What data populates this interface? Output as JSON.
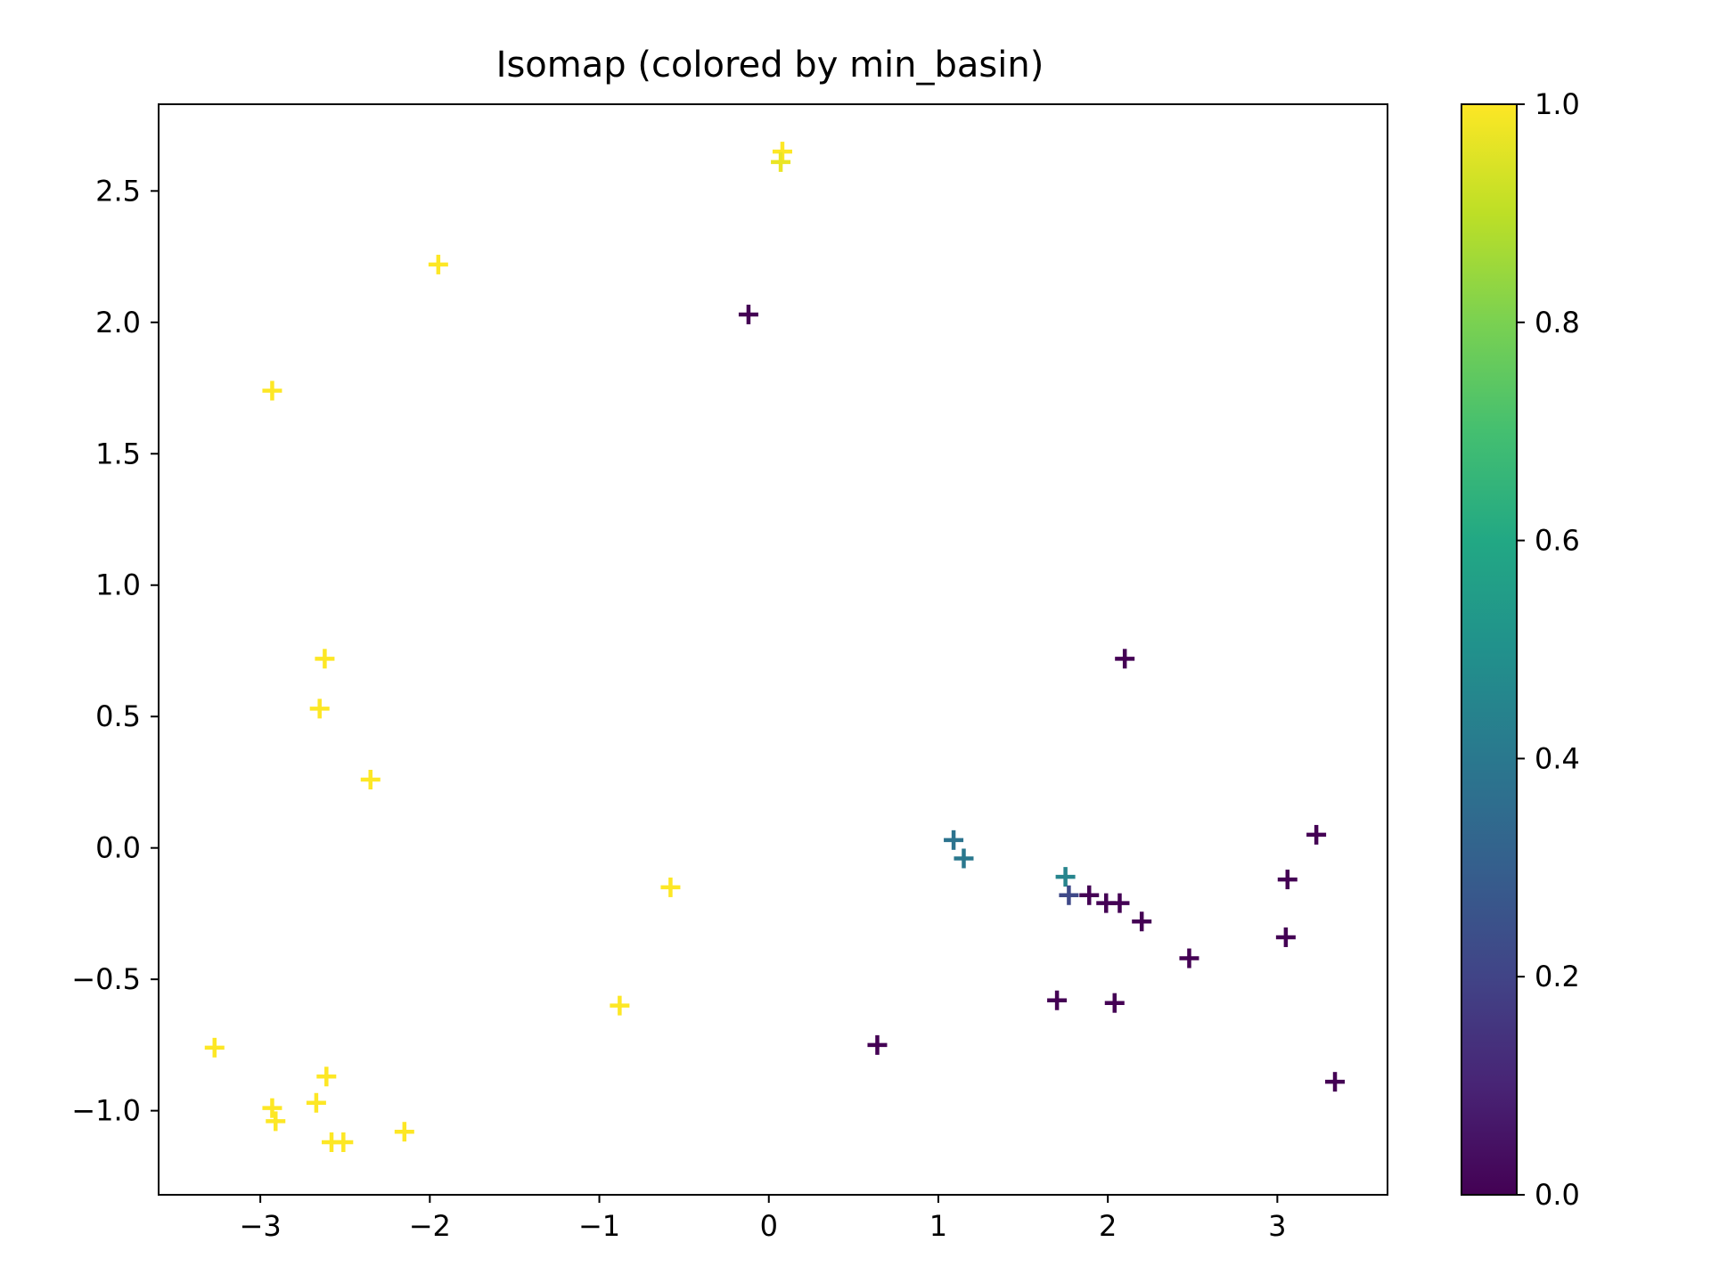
{
  "chart_data": {
    "type": "scatter",
    "title": "Isomap (colored by min_basin)",
    "xlabel": "",
    "ylabel": "",
    "xlim": [
      -3.6,
      3.65
    ],
    "ylim": [
      -1.32,
      2.83
    ],
    "xticks": [
      -3,
      -2,
      -1,
      0,
      1,
      2,
      3
    ],
    "xtick_labels": [
      "−3",
      "−2",
      "−1",
      "0",
      "1",
      "2",
      "3"
    ],
    "yticks": [
      -1.0,
      -0.5,
      0.0,
      0.5,
      1.0,
      1.5,
      2.0,
      2.5
    ],
    "ytick_labels": [
      "−1.0",
      "−0.5",
      "0.0",
      "0.5",
      "1.0",
      "1.5",
      "2.0",
      "2.5"
    ],
    "marker": "+",
    "grid": false,
    "colormap": "viridis",
    "colorbar": {
      "range": [
        0.0,
        1.0
      ],
      "ticks": [
        0.0,
        0.2,
        0.4,
        0.6,
        0.8,
        1.0
      ],
      "tick_labels": [
        "0.0",
        "0.2",
        "0.4",
        "0.6",
        "0.8",
        "1.0"
      ]
    },
    "points": [
      {
        "x": 0.08,
        "y": 2.65,
        "c": 1.0
      },
      {
        "x": 0.07,
        "y": 2.61,
        "c": 0.97
      },
      {
        "x": -1.95,
        "y": 2.22,
        "c": 1.0
      },
      {
        "x": -2.93,
        "y": 1.74,
        "c": 1.0
      },
      {
        "x": -2.62,
        "y": 0.72,
        "c": 1.0
      },
      {
        "x": -2.65,
        "y": 0.53,
        "c": 1.0
      },
      {
        "x": -2.35,
        "y": 0.26,
        "c": 1.0
      },
      {
        "x": -0.58,
        "y": -0.15,
        "c": 1.0
      },
      {
        "x": -0.88,
        "y": -0.6,
        "c": 1.0
      },
      {
        "x": -3.27,
        "y": -0.76,
        "c": 1.0
      },
      {
        "x": -2.61,
        "y": -0.87,
        "c": 1.0
      },
      {
        "x": -2.67,
        "y": -0.97,
        "c": 1.0
      },
      {
        "x": -2.93,
        "y": -0.99,
        "c": 1.0
      },
      {
        "x": -2.91,
        "y": -1.04,
        "c": 1.0
      },
      {
        "x": -2.15,
        "y": -1.08,
        "c": 1.0
      },
      {
        "x": -2.58,
        "y": -1.12,
        "c": 1.0
      },
      {
        "x": -2.51,
        "y": -1.12,
        "c": 1.0
      },
      {
        "x": -0.12,
        "y": 2.03,
        "c": 0.0
      },
      {
        "x": 2.1,
        "y": 0.72,
        "c": 0.0
      },
      {
        "x": 1.09,
        "y": 0.03,
        "c": 0.38
      },
      {
        "x": 1.15,
        "y": -0.04,
        "c": 0.4
      },
      {
        "x": 1.75,
        "y": -0.11,
        "c": 0.45
      },
      {
        "x": 1.77,
        "y": -0.18,
        "c": 0.22
      },
      {
        "x": 1.89,
        "y": -0.18,
        "c": 0.0
      },
      {
        "x": 1.99,
        "y": -0.21,
        "c": 0.0
      },
      {
        "x": 2.07,
        "y": -0.21,
        "c": 0.0
      },
      {
        "x": 2.2,
        "y": -0.28,
        "c": 0.0
      },
      {
        "x": 2.48,
        "y": -0.42,
        "c": 0.0
      },
      {
        "x": 1.7,
        "y": -0.58,
        "c": 0.0
      },
      {
        "x": 2.04,
        "y": -0.59,
        "c": 0.0
      },
      {
        "x": 0.64,
        "y": -0.75,
        "c": 0.0
      },
      {
        "x": 3.23,
        "y": 0.05,
        "c": 0.0
      },
      {
        "x": 3.06,
        "y": -0.12,
        "c": 0.0
      },
      {
        "x": 3.05,
        "y": -0.34,
        "c": 0.0
      },
      {
        "x": 3.34,
        "y": -0.89,
        "c": 0.0
      }
    ]
  }
}
